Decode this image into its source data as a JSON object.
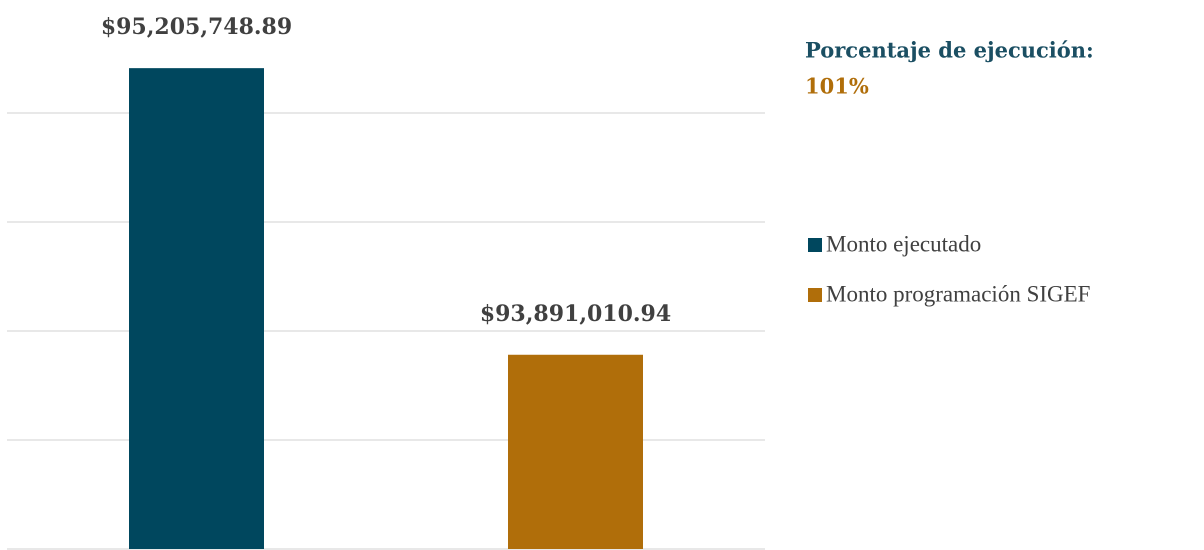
{
  "chart_data": {
    "type": "bar",
    "annotation": {
      "label": "Porcentaje de ejecución:",
      "value": "101%"
    },
    "series": [
      {
        "name": "Monto ejecutado",
        "color": "#00475e",
        "values": [
          95205748.89
        ],
        "value_labels": [
          "$95,205,748.89"
        ]
      },
      {
        "name": "Monto programación SIGEF",
        "color": "#b06e0a",
        "values": [
          93891010.94
        ],
        "value_labels": [
          "$93,891,010.94"
        ]
      }
    ],
    "ylim": [
      93000000,
      95500000
    ],
    "yticks": [
      93000000,
      93500000,
      94000000,
      94500000,
      95000000
    ],
    "grid": true,
    "legend": "right"
  }
}
